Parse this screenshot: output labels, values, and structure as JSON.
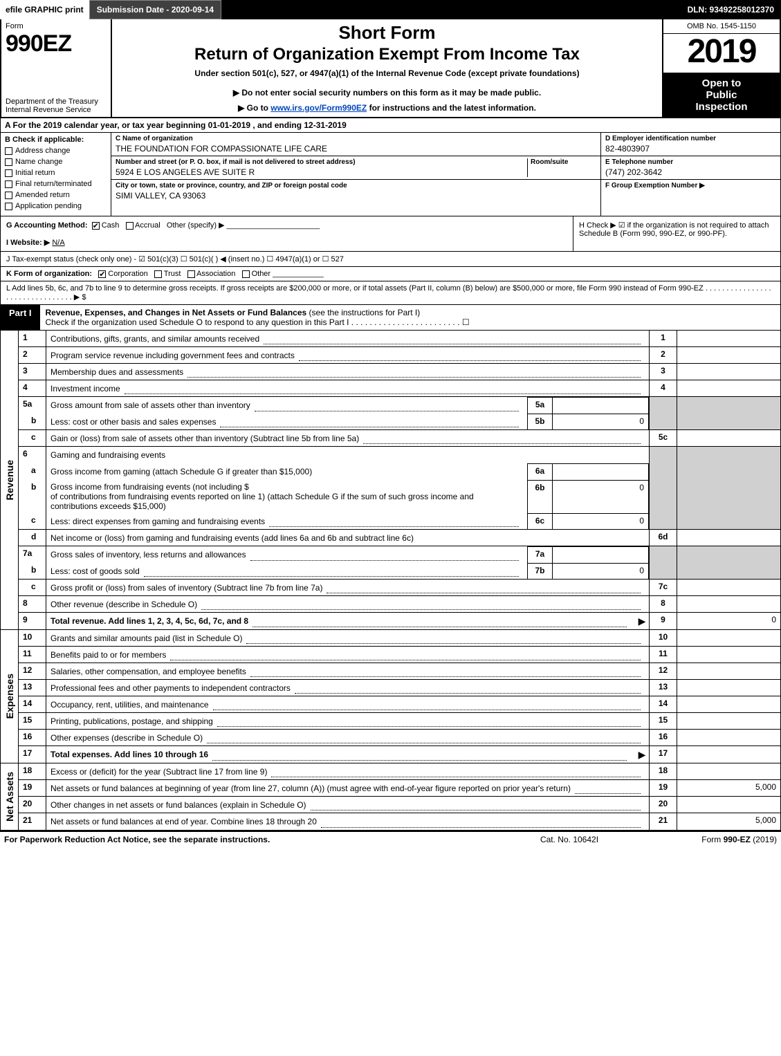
{
  "topbar": {
    "efile": "efile GRAPHIC print",
    "submission": "Submission Date - 2020-09-14",
    "dln": "DLN: 93492258012370"
  },
  "header": {
    "form_label": "Form",
    "form_number": "990EZ",
    "dept": "Department of the Treasury",
    "irs": "Internal Revenue Service",
    "short_form": "Short Form",
    "return_title": "Return of Organization Exempt From Income Tax",
    "under": "Under section 501(c), 527, or 4947(a)(1) of the Internal Revenue Code (except private foundations)",
    "do_not": "▶ Do not enter social security numbers on this form as it may be made public.",
    "goto_prefix": "▶ Go to ",
    "goto_link": "www.irs.gov/Form990EZ",
    "goto_suffix": " for instructions and the latest information.",
    "omb": "OMB No. 1545-1150",
    "year": "2019",
    "open1": "Open to",
    "open2": "Public",
    "open3": "Inspection"
  },
  "row_A": "A For the 2019 calendar year, or tax year beginning 01-01-2019 , and ending 12-31-2019",
  "col_B": {
    "hdr": "B Check if applicable:",
    "items": [
      "Address change",
      "Name change",
      "Initial return",
      "Final return/terminated",
      "Amended return",
      "Application pending"
    ]
  },
  "col_C": {
    "name_lbl": "C Name of organization",
    "name_val": "THE FOUNDATION FOR COMPASSIONATE LIFE CARE",
    "addr_lbl": "Number and street (or P. O. box, if mail is not delivered to street address)",
    "addr_val": "5924 E LOS ANGELES AVE SUITE R",
    "room_lbl": "Room/suite",
    "city_lbl": "City or town, state or province, country, and ZIP or foreign postal code",
    "city_val": "SIMI VALLEY, CA  93063"
  },
  "col_DEF": {
    "d_lbl": "D Employer identification number",
    "d_val": "82-4803907",
    "e_lbl": "E Telephone number",
    "e_val": "(747) 202-3642",
    "f_lbl": "F Group Exemption Number ▶",
    "f_val": ""
  },
  "row_G": {
    "label": "G Accounting Method:",
    "cash": "Cash",
    "accrual": "Accrual",
    "other": "Other (specify) ▶"
  },
  "row_H": "H  Check ▶  ☑  if the organization is not required to attach Schedule B (Form 990, 990-EZ, or 990-PF).",
  "row_I": {
    "label": "I Website: ▶",
    "val": "N/A"
  },
  "row_J": "J Tax-exempt status (check only one) - ☑ 501(c)(3)  ☐ 501(c)(  ) ◀ (insert no.)  ☐ 4947(a)(1) or  ☐ 527",
  "row_K": {
    "label": "K Form of organization:",
    "corp": "Corporation",
    "trust": "Trust",
    "assoc": "Association",
    "other": "Other"
  },
  "row_L": "L Add lines 5b, 6c, and 7b to line 9 to determine gross receipts. If gross receipts are $200,000 or more, or if total assets (Part II, column (B) below) are $500,000 or more, file Form 990 instead of Form 990-EZ . . . . . . . . . . . . . . . . . . . . . . . . . . . . . . . . ▶ $",
  "part1": {
    "tag": "Part I",
    "title_bold": "Revenue, Expenses, and Changes in Net Assets or Fund Balances",
    "title_rest": " (see the instructions for Part I)",
    "check_line": "Check if the organization used Schedule O to respond to any question in this Part I . . . . . . . . . . . . . . . . . . . . . . . . ☐"
  },
  "section_labels": {
    "revenue": "Revenue",
    "expenses": "Expenses",
    "netassets": "Net Assets"
  },
  "revenue_lines": [
    {
      "num": "1",
      "desc": "Contributions, gifts, grants, and similar amounts received",
      "rnum": "1"
    },
    {
      "num": "2",
      "desc": "Program service revenue including government fees and contracts",
      "rnum": "2"
    },
    {
      "num": "3",
      "desc": "Membership dues and assessments",
      "rnum": "3"
    },
    {
      "num": "4",
      "desc": "Investment income",
      "rnum": "4"
    }
  ],
  "line5": {
    "a_num": "5a",
    "a_desc": "Gross amount from sale of assets other than inventory",
    "a_box": "5a",
    "b_num": "b",
    "b_desc": "Less: cost or other basis and sales expenses",
    "b_box": "5b",
    "b_val": "0",
    "c_num": "c",
    "c_desc": "Gain or (loss) from sale of assets other than inventory (Subtract line 5b from line 5a)",
    "c_rnum": "5c"
  },
  "line6": {
    "num": "6",
    "hdr": "Gaming and fundraising events",
    "a_num": "a",
    "a_desc": "Gross income from gaming (attach Schedule G if greater than $15,000)",
    "a_box": "6a",
    "b_num": "b",
    "b_desc1": "Gross income from fundraising events (not including $",
    "b_desc2": "of contributions from fundraising events reported on line 1) (attach Schedule G if the sum of such gross income and contributions exceeds $15,000)",
    "b_box": "6b",
    "b_val": "0",
    "c_num": "c",
    "c_desc": "Less: direct expenses from gaming and fundraising events",
    "c_box": "6c",
    "c_val": "0",
    "d_num": "d",
    "d_desc": "Net income or (loss) from gaming and fundraising events (add lines 6a and 6b and subtract line 6c)",
    "d_rnum": "6d"
  },
  "line7": {
    "a_num": "7a",
    "a_desc": "Gross sales of inventory, less returns and allowances",
    "a_box": "7a",
    "b_num": "b",
    "b_desc": "Less: cost of goods sold",
    "b_box": "7b",
    "b_val": "0",
    "c_num": "c",
    "c_desc": "Gross profit or (loss) from sales of inventory (Subtract line 7b from line 7a)",
    "c_rnum": "7c"
  },
  "line8": {
    "num": "8",
    "desc": "Other revenue (describe in Schedule O)",
    "rnum": "8"
  },
  "line9": {
    "num": "9",
    "desc": "Total revenue. Add lines 1, 2, 3, 4, 5c, 6d, 7c, and 8",
    "rnum": "9",
    "val": "0"
  },
  "expense_lines": [
    {
      "num": "10",
      "desc": "Grants and similar amounts paid (list in Schedule O)",
      "rnum": "10"
    },
    {
      "num": "11",
      "desc": "Benefits paid to or for members",
      "rnum": "11"
    },
    {
      "num": "12",
      "desc": "Salaries, other compensation, and employee benefits",
      "rnum": "12"
    },
    {
      "num": "13",
      "desc": "Professional fees and other payments to independent contractors",
      "rnum": "13"
    },
    {
      "num": "14",
      "desc": "Occupancy, rent, utilities, and maintenance",
      "rnum": "14"
    },
    {
      "num": "15",
      "desc": "Printing, publications, postage, and shipping",
      "rnum": "15"
    },
    {
      "num": "16",
      "desc": "Other expenses (describe in Schedule O)",
      "rnum": "16"
    }
  ],
  "line17": {
    "num": "17",
    "desc": "Total expenses. Add lines 10 through 16",
    "rnum": "17"
  },
  "netasset_lines": [
    {
      "num": "18",
      "desc": "Excess or (deficit) for the year (Subtract line 17 from line 9)",
      "rnum": "18"
    },
    {
      "num": "19",
      "desc": "Net assets or fund balances at beginning of year (from line 27, column (A)) (must agree with end-of-year figure reported on prior year's return)",
      "rnum": "19",
      "val": "5,000"
    },
    {
      "num": "20",
      "desc": "Other changes in net assets or fund balances (explain in Schedule O)",
      "rnum": "20"
    },
    {
      "num": "21",
      "desc": "Net assets or fund balances at end of year. Combine lines 18 through 20",
      "rnum": "21",
      "val": "5,000"
    }
  ],
  "footer": {
    "left": "For Paperwork Reduction Act Notice, see the separate instructions.",
    "center": "Cat. No. 10642I",
    "right_prefix": "Form ",
    "right_bold": "990-EZ",
    "right_suffix": " (2019)"
  }
}
